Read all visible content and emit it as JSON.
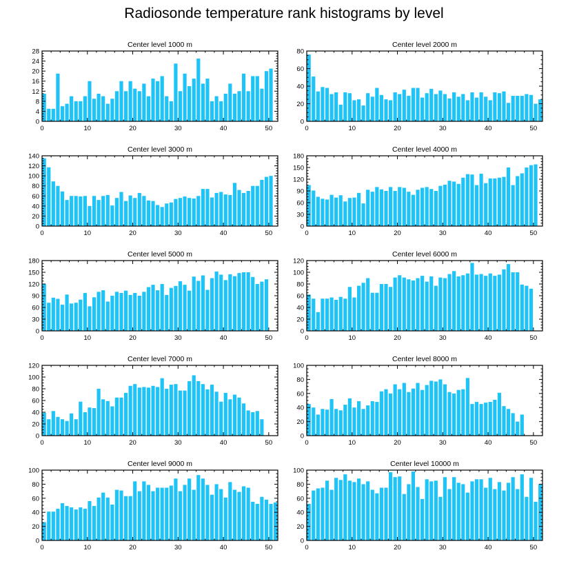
{
  "title": "Radiosonde temperature rank histograms by level",
  "colors": {
    "bar": "#1ec4f7",
    "axis": "#000000",
    "background": "#ffffff"
  },
  "chart_data": [
    {
      "type": "bar",
      "title": "Center level 1000 m",
      "xlim": [
        0,
        52
      ],
      "ylim": [
        0,
        28
      ],
      "xticks": [
        0,
        10,
        20,
        30,
        40,
        50
      ],
      "yticks": [
        0,
        4,
        8,
        12,
        16,
        20,
        24,
        28
      ],
      "values": [
        11,
        5,
        5,
        19,
        6,
        7,
        10,
        8,
        8,
        10,
        16,
        9,
        11,
        10,
        7,
        9,
        12,
        16,
        12,
        16,
        13,
        12,
        15,
        10,
        17,
        16,
        18,
        10,
        8,
        23,
        12,
        19,
        14,
        17,
        25,
        15,
        17,
        8,
        10,
        8,
        11,
        15,
        11,
        12,
        19,
        12,
        18,
        18,
        13,
        20,
        21,
        0
      ]
    },
    {
      "type": "bar",
      "title": "Center level 2000 m",
      "xlim": [
        0,
        52
      ],
      "ylim": [
        0,
        80
      ],
      "xticks": [
        0,
        10,
        20,
        30,
        40,
        50
      ],
      "yticks": [
        0,
        20,
        40,
        60,
        80
      ],
      "values": [
        76,
        51,
        34,
        39,
        38,
        31,
        33,
        19,
        33,
        32,
        24,
        25,
        18,
        32,
        28,
        38,
        30,
        25,
        24,
        33,
        31,
        36,
        29,
        38,
        38,
        27,
        32,
        37,
        31,
        35,
        31,
        26,
        33,
        28,
        31,
        24,
        33,
        27,
        33,
        28,
        24,
        33,
        32,
        34,
        21,
        29,
        29,
        29,
        31,
        30,
        20,
        25
      ]
    },
    {
      "type": "bar",
      "title": "Center level 3000 m",
      "xlim": [
        0,
        52
      ],
      "ylim": [
        0,
        140
      ],
      "xticks": [
        0,
        10,
        20,
        30,
        40,
        50
      ],
      "yticks": [
        0,
        20,
        40,
        60,
        80,
        100,
        120,
        140
      ],
      "values": [
        135,
        117,
        89,
        80,
        69,
        52,
        60,
        60,
        59,
        60,
        40,
        60,
        52,
        60,
        62,
        41,
        56,
        68,
        50,
        61,
        56,
        66,
        60,
        51,
        50,
        42,
        38,
        45,
        47,
        54,
        56,
        59,
        56,
        55,
        60,
        74,
        74,
        57,
        66,
        68,
        63,
        62,
        86,
        72,
        66,
        70,
        80,
        80,
        92,
        98,
        100,
        0
      ]
    },
    {
      "type": "bar",
      "title": "Center level 4000 m",
      "xlim": [
        0,
        52
      ],
      "ylim": [
        0,
        180
      ],
      "xticks": [
        0,
        10,
        20,
        30,
        40,
        50
      ],
      "yticks": [
        0,
        30,
        60,
        90,
        120,
        150,
        180
      ],
      "values": [
        105,
        91,
        75,
        70,
        68,
        80,
        73,
        79,
        63,
        72,
        73,
        85,
        58,
        93,
        88,
        100,
        94,
        90,
        100,
        90,
        100,
        98,
        88,
        80,
        93,
        98,
        100,
        95,
        90,
        103,
        106,
        116,
        114,
        108,
        124,
        133,
        132,
        105,
        134,
        110,
        122,
        122,
        124,
        126,
        150,
        105,
        128,
        135,
        150,
        156,
        158,
        0
      ]
    },
    {
      "type": "bar",
      "title": "Center level 5000 m",
      "xlim": [
        0,
        52
      ],
      "ylim": [
        0,
        180
      ],
      "xticks": [
        0,
        10,
        20,
        30,
        40,
        50
      ],
      "yticks": [
        0,
        30,
        60,
        90,
        120,
        150,
        180
      ],
      "values": [
        120,
        72,
        85,
        82,
        67,
        93,
        70,
        72,
        80,
        97,
        63,
        86,
        100,
        104,
        75,
        90,
        100,
        97,
        103,
        92,
        97,
        90,
        100,
        112,
        118,
        104,
        120,
        92,
        110,
        115,
        127,
        118,
        103,
        139,
        128,
        142,
        105,
        135,
        152,
        144,
        130,
        145,
        140,
        148,
        150,
        150,
        138,
        120,
        126,
        132,
        0,
        0
      ]
    },
    {
      "type": "bar",
      "title": "Center level 6000 m",
      "xlim": [
        0,
        52
      ],
      "ylim": [
        0,
        120
      ],
      "xticks": [
        0,
        10,
        20,
        30,
        40,
        50
      ],
      "yticks": [
        0,
        20,
        40,
        60,
        80,
        100,
        120
      ],
      "values": [
        62,
        55,
        32,
        55,
        55,
        57,
        53,
        58,
        55,
        75,
        57,
        77,
        82,
        90,
        65,
        65,
        80,
        80,
        75,
        91,
        95,
        91,
        88,
        86,
        90,
        94,
        84,
        93,
        77,
        91,
        90,
        97,
        102,
        93,
        95,
        98,
        116,
        96,
        97,
        94,
        98,
        94,
        96,
        105,
        114,
        100,
        100,
        79,
        77,
        72,
        0,
        0
      ]
    },
    {
      "type": "bar",
      "title": "Center level 7000 m",
      "xlim": [
        0,
        52
      ],
      "ylim": [
        0,
        120
      ],
      "xticks": [
        0,
        10,
        20,
        30,
        40,
        50
      ],
      "yticks": [
        0,
        20,
        40,
        60,
        80,
        100,
        120
      ],
      "values": [
        39,
        28,
        42,
        32,
        28,
        25,
        38,
        28,
        58,
        40,
        48,
        47,
        80,
        62,
        59,
        50,
        65,
        65,
        73,
        85,
        88,
        82,
        83,
        82,
        85,
        83,
        98,
        80,
        87,
        88,
        77,
        77,
        93,
        103,
        93,
        88,
        79,
        87,
        75,
        58,
        73,
        62,
        70,
        65,
        55,
        43,
        40,
        42,
        28,
        0,
        0,
        0
      ]
    },
    {
      "type": "bar",
      "title": "Center level 8000 m",
      "xlim": [
        0,
        52
      ],
      "ylim": [
        0,
        100
      ],
      "xticks": [
        0,
        10,
        20,
        30,
        40,
        50
      ],
      "yticks": [
        0,
        20,
        40,
        60,
        80,
        100
      ],
      "values": [
        45,
        40,
        30,
        38,
        37,
        52,
        38,
        36,
        44,
        53,
        40,
        49,
        38,
        43,
        49,
        48,
        63,
        66,
        60,
        73,
        66,
        75,
        62,
        67,
        75,
        65,
        72,
        78,
        77,
        80,
        73,
        62,
        60,
        65,
        66,
        82,
        45,
        48,
        45,
        47,
        48,
        51,
        61,
        42,
        38,
        32,
        20,
        30,
        0,
        0,
        0,
        0
      ]
    },
    {
      "type": "bar",
      "title": "Center level 9000 m",
      "xlim": [
        0,
        52
      ],
      "ylim": [
        0,
        100
      ],
      "xticks": [
        0,
        10,
        20,
        30,
        40,
        50
      ],
      "yticks": [
        0,
        20,
        40,
        60,
        80,
        100
      ],
      "values": [
        26,
        41,
        41,
        45,
        53,
        49,
        47,
        44,
        47,
        45,
        56,
        49,
        61,
        68,
        61,
        51,
        72,
        71,
        63,
        63,
        84,
        70,
        84,
        79,
        70,
        75,
        75,
        75,
        78,
        88,
        70,
        79,
        88,
        72,
        93,
        88,
        79,
        65,
        80,
        73,
        61,
        83,
        72,
        69,
        77,
        75,
        55,
        52,
        62,
        58,
        52,
        54
      ]
    },
    {
      "type": "bar",
      "title": "Center level 10000 m",
      "xlim": [
        0,
        52
      ],
      "ylim": [
        0,
        100
      ],
      "xticks": [
        0,
        10,
        20,
        30,
        40,
        50
      ],
      "yticks": [
        0,
        20,
        40,
        60,
        80,
        100
      ],
      "values": [
        52,
        71,
        74,
        75,
        85,
        72,
        89,
        86,
        94,
        85,
        83,
        88,
        80,
        84,
        72,
        67,
        75,
        75,
        97,
        90,
        91,
        66,
        80,
        98,
        76,
        59,
        87,
        84,
        85,
        62,
        90,
        73,
        90,
        82,
        80,
        68,
        84,
        87,
        87,
        75,
        89,
        73,
        83,
        71,
        82,
        90,
        73,
        94,
        62,
        89,
        55,
        80
      ]
    }
  ]
}
